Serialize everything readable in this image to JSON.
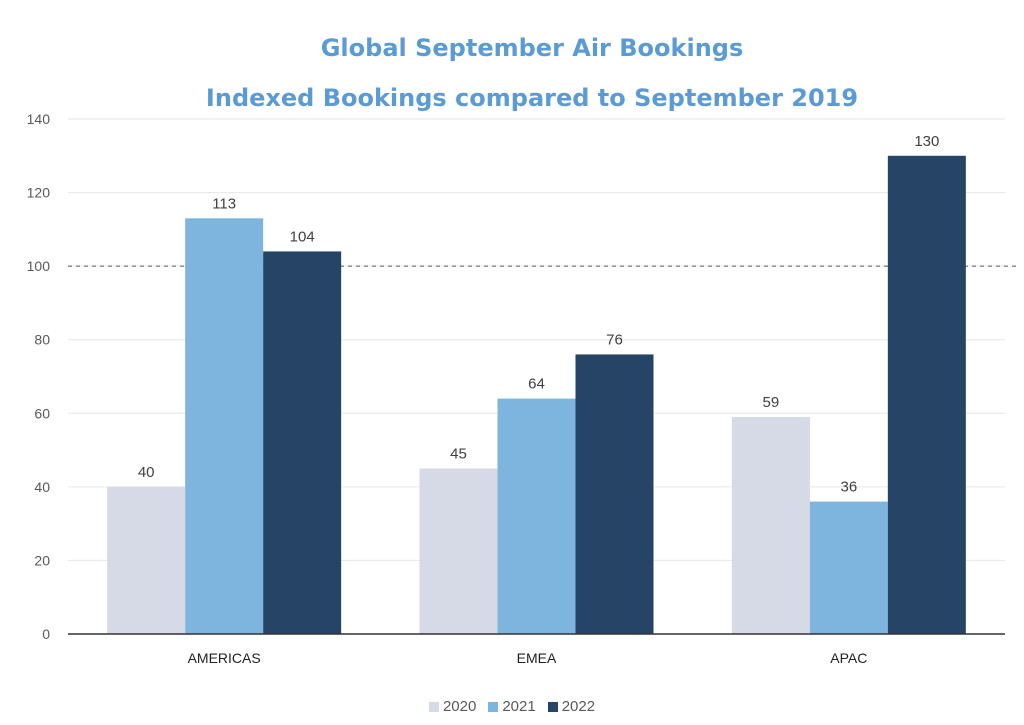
{
  "chart_data": {
    "type": "bar",
    "title": "Global September Air Bookings",
    "subtitle": "Indexed Bookings compared to September 2019",
    "categories": [
      "AMERICAS",
      "EMEA",
      "APAC"
    ],
    "series": [
      {
        "name": "2020",
        "values": [
          40,
          45,
          59
        ],
        "color": "#d6d9e6"
      },
      {
        "name": "2021",
        "values": [
          113,
          64,
          36
        ],
        "color": "#7eb5de"
      },
      {
        "name": "2022",
        "values": [
          104,
          76,
          130
        ],
        "color": "#264466"
      }
    ],
    "ylim": [
      0,
      140
    ],
    "yticks": [
      "0",
      "20",
      "40",
      "60",
      "80",
      "100",
      "120",
      "140"
    ],
    "reference_line": 100,
    "grid": true,
    "legend_position": "bottom-center",
    "xlabel": "",
    "ylabel": ""
  }
}
